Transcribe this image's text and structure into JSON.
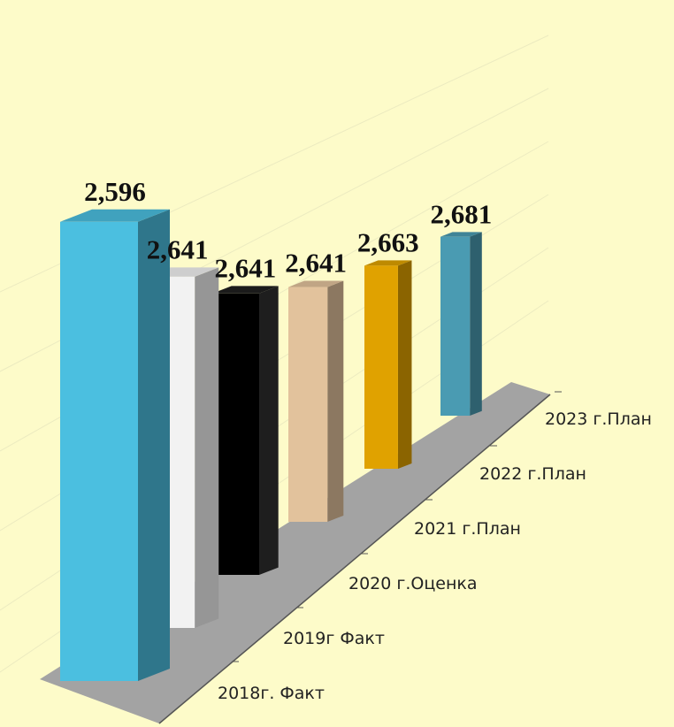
{
  "chart_data": {
    "type": "bar3d",
    "categories": [
      "2018г. Факт",
      "2019г Факт",
      "2020 г.Оценка",
      "2021 г.План",
      "2022 г.План",
      "2023 г.План"
    ],
    "values": [
      2.596,
      2.641,
      2.641,
      2.641,
      2.663,
      2.681
    ],
    "value_labels": [
      "2,596",
      "2,641",
      "2,641",
      "2,641",
      "2,663",
      "2,681"
    ],
    "colors": [
      "#4bbfe0",
      "#f2f2f2",
      "#000000",
      "#e2c29c",
      "#e0a200",
      "#4a9bb2"
    ]
  }
}
